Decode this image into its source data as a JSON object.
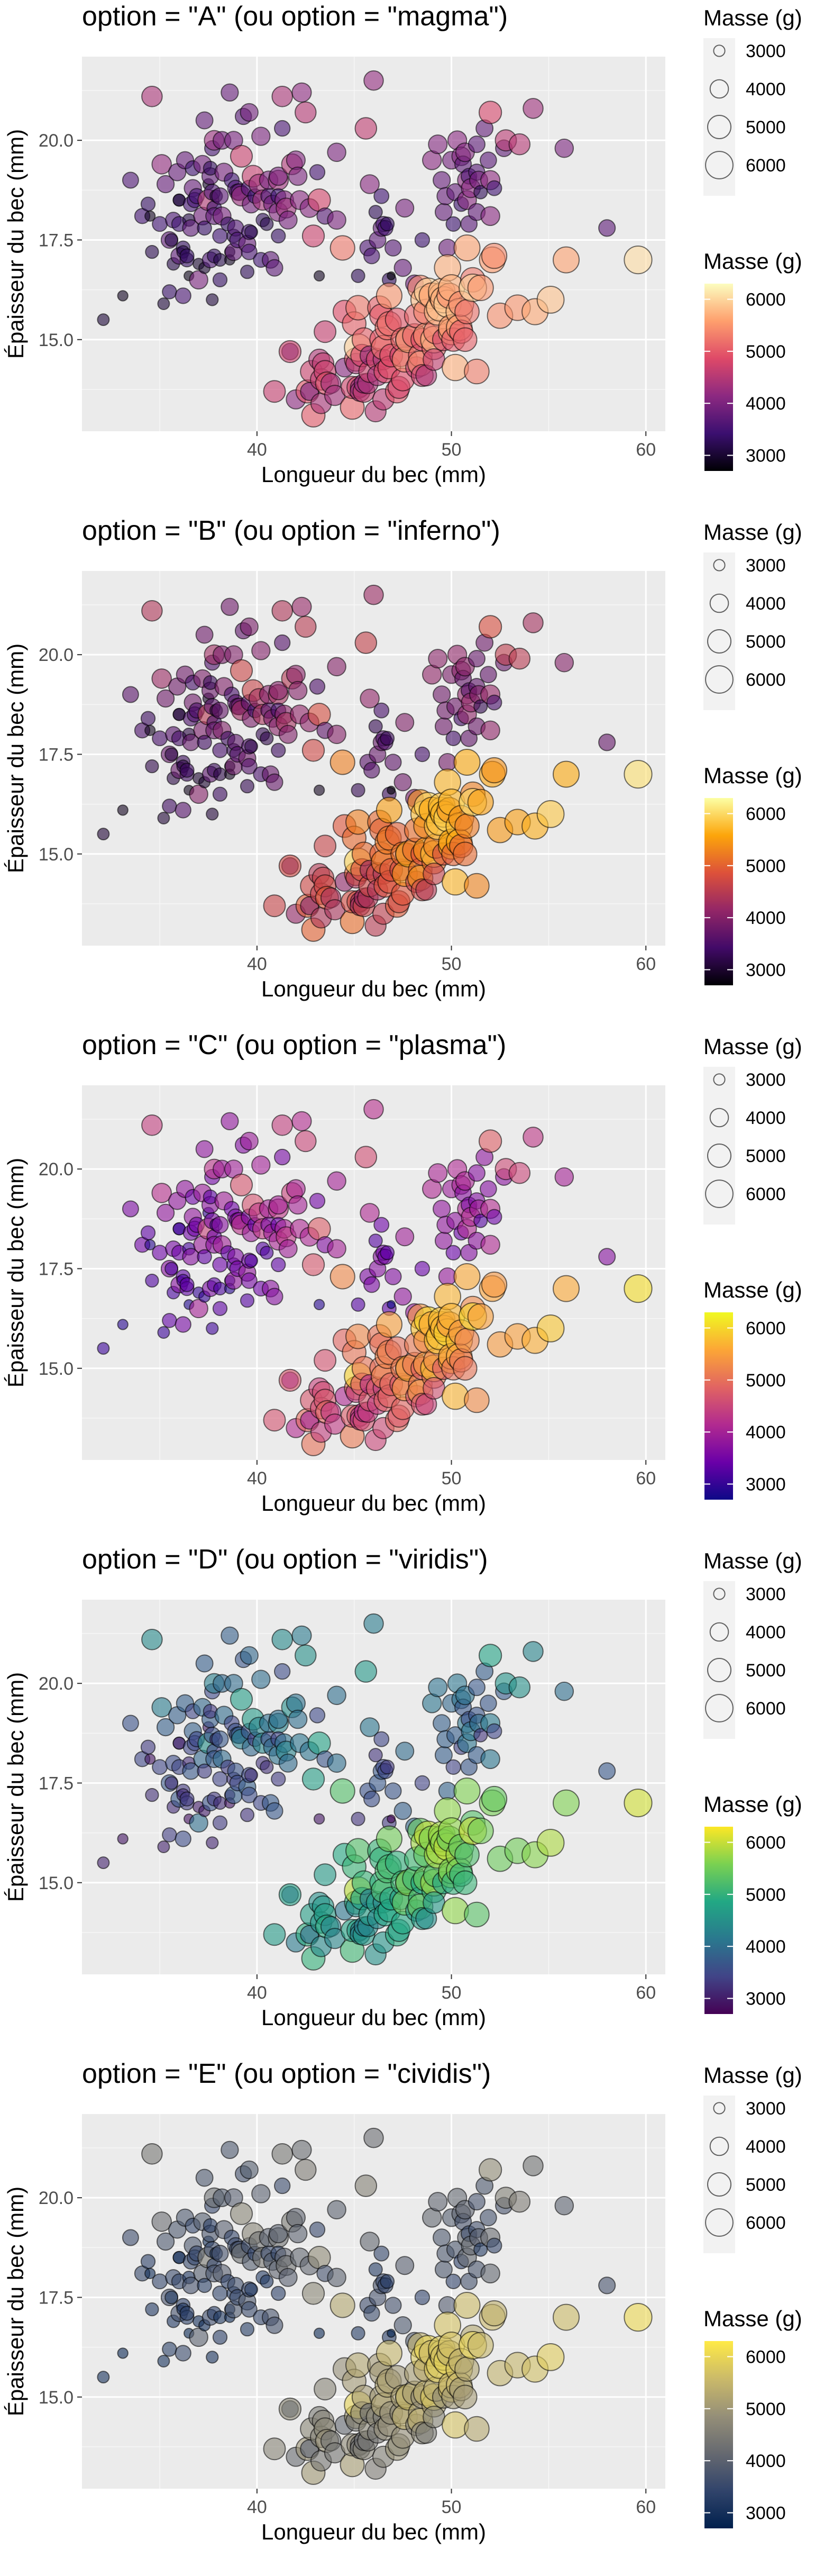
{
  "chart_data": {
    "type": "scatter",
    "xlabel": "Longueur du bec (mm)",
    "ylabel": "Épaisseur du bec (mm)",
    "xlim": [
      31,
      61
    ],
    "ylim": [
      12.7,
      22.1
    ],
    "x_ticks": [
      40,
      50,
      60
    ],
    "y_ticks": [
      15.0,
      17.5,
      20.0
    ],
    "x_tick_labels": [
      "40",
      "50",
      "60"
    ],
    "y_tick_labels": [
      "15.0",
      "17.5",
      "20.0"
    ],
    "grid": true,
    "legend_position": "right",
    "size_legend": {
      "title": "Masse (g)",
      "values": [
        3000,
        4000,
        5000,
        6000
      ],
      "labels": [
        "3000",
        "4000",
        "5000",
        "6000"
      ]
    },
    "color_legend": {
      "title": "Masse (g)",
      "range": [
        2700,
        6300
      ],
      "ticks": [
        3000,
        4000,
        5000,
        6000
      ],
      "labels": [
        "3000",
        "4000",
        "5000",
        "6000"
      ]
    },
    "panels": [
      {
        "title": "option = \"A\" (ou option = \"magma\")",
        "palette": "magma",
        "stops": [
          "#000004",
          "#3b0f70",
          "#8c2981",
          "#de4968",
          "#fe9f6d",
          "#fcfdbf"
        ]
      },
      {
        "title": "option = \"B\" (ou option = \"inferno\")",
        "palette": "inferno",
        "stops": [
          "#000004",
          "#420a68",
          "#932667",
          "#dd513a",
          "#fca50a",
          "#fcffa4"
        ]
      },
      {
        "title": "option = \"C\" (ou option = \"plasma\")",
        "palette": "plasma",
        "stops": [
          "#0d0887",
          "#6a00a8",
          "#b12a90",
          "#e16462",
          "#fca636",
          "#f0f921"
        ]
      },
      {
        "title": "option = \"D\" (ou option = \"viridis\")",
        "palette": "viridis",
        "stops": [
          "#440154",
          "#414487",
          "#2a788e",
          "#22a884",
          "#7ad151",
          "#fde725"
        ]
      },
      {
        "title": "option = \"E\" (ou option = \"cividis\")",
        "palette": "cividis",
        "stops": [
          "#00204d",
          "#31446b",
          "#666970",
          "#958f78",
          "#cbba69",
          "#ffea46"
        ]
      }
    ],
    "points": [
      [
        32.1,
        15.5,
        3050
      ],
      [
        33.1,
        16.1,
        2900
      ],
      [
        33.5,
        19.0,
        3600
      ],
      [
        34.1,
        18.1,
        3475
      ],
      [
        34.4,
        18.4,
        3325
      ],
      [
        34.5,
        18.1,
        2900
      ],
      [
        34.6,
        21.1,
        4400
      ],
      [
        34.6,
        17.2,
        3200
      ],
      [
        35.0,
        17.9,
        3450
      ],
      [
        35.1,
        19.4,
        4200
      ],
      [
        35.2,
        15.9,
        3050
      ],
      [
        35.3,
        18.9,
        3800
      ],
      [
        35.5,
        16.2,
        3350
      ],
      [
        35.5,
        17.5,
        3700
      ],
      [
        35.6,
        17.5,
        3175
      ],
      [
        35.7,
        16.9,
        3150
      ],
      [
        35.7,
        18.0,
        3550
      ],
      [
        35.9,
        19.2,
        3800
      ],
      [
        36.0,
        18.5,
        3100
      ],
      [
        36.0,
        17.9,
        3450
      ],
      [
        36.0,
        17.1,
        3700
      ],
      [
        36.0,
        18.5,
        3100
      ],
      [
        36.2,
        17.3,
        3300
      ],
      [
        36.2,
        16.1,
        3550
      ],
      [
        36.2,
        17.2,
        3150
      ],
      [
        36.3,
        19.5,
        3800
      ],
      [
        36.4,
        17.0,
        3325
      ],
      [
        36.4,
        17.1,
        3325
      ],
      [
        36.5,
        18.0,
        3150
      ],
      [
        36.5,
        16.6,
        2850
      ],
      [
        36.6,
        17.8,
        3700
      ],
      [
        36.6,
        18.4,
        3475
      ],
      [
        36.7,
        19.3,
        3450
      ],
      [
        36.7,
        18.8,
        3800
      ],
      [
        36.8,
        18.5,
        3500
      ],
      [
        36.9,
        18.6,
        3500
      ],
      [
        37.0,
        16.9,
        3000
      ],
      [
        37.0,
        16.5,
        4000
      ],
      [
        37.2,
        18.1,
        3900
      ],
      [
        37.2,
        19.4,
        3900
      ],
      [
        37.3,
        20.5,
        3775
      ],
      [
        37.3,
        17.8,
        3350
      ],
      [
        37.3,
        16.8,
        3000
      ],
      [
        37.5,
        18.9,
        2975
      ],
      [
        37.5,
        18.5,
        4475
      ],
      [
        37.6,
        17.0,
        3600
      ],
      [
        37.6,
        19.1,
        3750
      ],
      [
        37.6,
        19.3,
        3300
      ],
      [
        37.7,
        18.7,
        3600
      ],
      [
        37.7,
        19.8,
        3500
      ],
      [
        37.7,
        16.0,
        3075
      ],
      [
        37.8,
        18.3,
        3400
      ],
      [
        37.8,
        17.1,
        3300
      ],
      [
        37.8,
        20.0,
        4250
      ],
      [
        37.8,
        18.1,
        3750
      ],
      [
        37.9,
        18.6,
        3150
      ],
      [
        38.1,
        18.6,
        3700
      ],
      [
        38.1,
        17.0,
        3175
      ],
      [
        38.1,
        16.5,
        3325
      ],
      [
        38.1,
        17.6,
        3425
      ],
      [
        38.2,
        18.1,
        3950
      ],
      [
        38.2,
        20.0,
        3900
      ],
      [
        38.3,
        19.2,
        3950
      ],
      [
        38.5,
        17.9,
        3325
      ],
      [
        38.6,
        21.2,
        3800
      ],
      [
        38.6,
        17.2,
        2900
      ],
      [
        38.6,
        17.0,
        2900
      ],
      [
        38.7,
        19.0,
        3450
      ],
      [
        38.8,
        17.2,
        3800
      ],
      [
        38.8,
        17.6,
        3275
      ],
      [
        38.8,
        20.0,
        3950
      ],
      [
        38.9,
        17.8,
        3625
      ],
      [
        38.9,
        18.8,
        3600
      ],
      [
        39.0,
        17.5,
        3550
      ],
      [
        39.0,
        18.7,
        3650
      ],
      [
        39.1,
        18.7,
        3750
      ],
      [
        39.2,
        19.6,
        4675
      ],
      [
        39.2,
        18.6,
        4250
      ],
      [
        39.3,
        20.6,
        3650
      ],
      [
        39.5,
        17.4,
        3800
      ],
      [
        39.5,
        16.7,
        3250
      ],
      [
        39.6,
        17.7,
        3500
      ],
      [
        39.6,
        20.7,
        3900
      ],
      [
        39.6,
        18.8,
        3600
      ],
      [
        39.6,
        17.2,
        3550
      ],
      [
        39.7,
        18.4,
        3900
      ],
      [
        39.7,
        17.7,
        3200
      ],
      [
        39.8,
        19.1,
        4650
      ],
      [
        39.9,
        18.6,
        3400
      ],
      [
        40.1,
        18.9,
        4300
      ],
      [
        40.2,
        17.0,
        3450
      ],
      [
        40.2,
        20.1,
        3975
      ],
      [
        40.3,
        18.0,
        3250
      ],
      [
        40.3,
        18.5,
        4350
      ],
      [
        40.5,
        17.9,
        3200
      ],
      [
        40.6,
        18.6,
        3550
      ],
      [
        40.6,
        19.0,
        4000
      ],
      [
        40.7,
        17.0,
        3725
      ],
      [
        40.8,
        18.4,
        3900
      ],
      [
        40.9,
        16.8,
        3700
      ],
      [
        41.1,
        17.6,
        3325
      ],
      [
        41.1,
        19.0,
        4300
      ],
      [
        41.1,
        18.2,
        4050
      ],
      [
        41.1,
        19.1,
        4000
      ],
      [
        41.1,
        18.6,
        3450
      ],
      [
        41.3,
        20.3,
        3550
      ],
      [
        41.3,
        21.1,
        4400
      ],
      [
        41.4,
        18.5,
        4050
      ],
      [
        41.5,
        18.3,
        4300
      ],
      [
        41.6,
        18.0,
        3950
      ],
      [
        41.7,
        14.7,
        3700
      ],
      [
        41.8,
        19.4,
        4450
      ],
      [
        42.0,
        19.5,
        4050
      ],
      [
        42.1,
        19.1,
        4000
      ],
      [
        42.2,
        18.5,
        4100
      ],
      [
        42.3,
        21.2,
        4150
      ],
      [
        42.5,
        20.7,
        4500
      ],
      [
        42.7,
        18.3,
        4075
      ],
      [
        42.9,
        17.6,
        4700
      ],
      [
        43.1,
        19.2,
        3500
      ],
      [
        43.2,
        18.5,
        4775
      ],
      [
        43.2,
        16.6,
        2900
      ],
      [
        43.5,
        18.1,
        3650
      ],
      [
        44.1,
        19.7,
        4000
      ],
      [
        44.1,
        18.0,
        4000
      ],
      [
        45.2,
        16.6,
        3250
      ],
      [
        45.6,
        20.3,
        4600
      ],
      [
        45.7,
        17.3,
        3600
      ],
      [
        45.8,
        18.9,
        4100
      ],
      [
        45.9,
        17.1,
        3575
      ],
      [
        46.0,
        21.5,
        4200
      ],
      [
        46.1,
        18.2,
        3250
      ],
      [
        46.2,
        17.5,
        3700
      ],
      [
        46.4,
        17.8,
        3700
      ],
      [
        46.4,
        18.6,
        3450
      ],
      [
        46.5,
        17.9,
        3500
      ],
      [
        46.6,
        17.8,
        3500
      ],
      [
        46.7,
        17.9,
        3300
      ],
      [
        46.8,
        16.5,
        3300
      ],
      [
        46.9,
        16.6,
        2700
      ],
      [
        47.0,
        17.3,
        3650
      ],
      [
        47.5,
        16.8,
        3800
      ],
      [
        47.6,
        18.3,
        3950
      ],
      [
        48.1,
        16.4,
        3900
      ],
      [
        48.5,
        17.5,
        3400
      ],
      [
        49.0,
        19.5,
        4100
      ],
      [
        49.3,
        19.9,
        4050
      ],
      [
        49.5,
        19.0,
        3800
      ],
      [
        49.6,
        18.2,
        3775
      ],
      [
        49.7,
        18.6,
        3800
      ],
      [
        49.8,
        17.3,
        3850
      ],
      [
        50.0,
        19.5,
        3900
      ],
      [
        50.1,
        17.9,
        3400
      ],
      [
        50.2,
        18.7,
        3775
      ],
      [
        50.3,
        20.0,
        4100
      ],
      [
        50.5,
        18.4,
        3400
      ],
      [
        50.5,
        19.6,
        4050
      ],
      [
        50.6,
        19.4,
        3700
      ],
      [
        50.7,
        19.7,
        4050
      ],
      [
        50.8,
        19.0,
        4100
      ],
      [
        50.8,
        18.5,
        4100
      ],
      [
        50.9,
        17.9,
        3675
      ],
      [
        50.9,
        19.1,
        3550
      ],
      [
        51.0,
        18.8,
        4100
      ],
      [
        51.3,
        19.9,
        3700
      ],
      [
        51.3,
        18.2,
        3750
      ],
      [
        51.3,
        19.2,
        3650
      ],
      [
        51.4,
        19.0,
        3950
      ],
      [
        51.5,
        18.7,
        3250
      ],
      [
        51.7,
        20.3,
        3775
      ],
      [
        51.9,
        19.5,
        3675
      ],
      [
        52.0,
        18.1,
        4100
      ],
      [
        52.0,
        19.0,
        4150
      ],
      [
        52.0,
        20.7,
        4800
      ],
      [
        52.2,
        18.8,
        3450
      ],
      [
        52.7,
        19.8,
        3725
      ],
      [
        52.8,
        20.0,
        4550
      ],
      [
        53.5,
        19.9,
        4500
      ],
      [
        54.2,
        20.8,
        4300
      ],
      [
        55.8,
        19.8,
        4000
      ],
      [
        58.0,
        17.8,
        3700
      ],
      [
        40.9,
        13.7,
        4650
      ],
      [
        41.7,
        14.7,
        4700
      ],
      [
        42.0,
        13.5,
        4150
      ],
      [
        42.6,
        13.7,
        4950
      ],
      [
        42.7,
        13.7,
        3950
      ],
      [
        42.8,
        14.2,
        4700
      ],
      [
        42.9,
        13.1,
        5000
      ],
      [
        43.2,
        14.5,
        4450
      ],
      [
        43.3,
        13.4,
        4400
      ],
      [
        43.3,
        14.0,
        4575
      ],
      [
        43.4,
        14.4,
        4600
      ],
      [
        43.5,
        14.2,
        4700
      ],
      [
        43.5,
        15.2,
        4650
      ],
      [
        43.6,
        13.9,
        4900
      ],
      [
        43.8,
        13.9,
        4300
      ],
      [
        44.0,
        13.6,
        4350
      ],
      [
        44.4,
        17.3,
        5250
      ],
      [
        44.5,
        14.3,
        4100
      ],
      [
        44.5,
        15.7,
        4875
      ],
      [
        44.9,
        13.3,
        5100
      ],
      [
        44.9,
        13.8,
        4750
      ],
      [
        45.0,
        15.4,
        5050
      ],
      [
        45.1,
        14.5,
        5000
      ],
      [
        45.1,
        14.4,
        4400
      ],
      [
        45.2,
        13.8,
        4750
      ],
      [
        45.2,
        14.8,
        5950
      ],
      [
        45.2,
        15.8,
        5250
      ],
      [
        45.3,
        13.8,
        4200
      ],
      [
        45.3,
        13.7,
        4300
      ],
      [
        45.4,
        14.6,
        4800
      ],
      [
        45.5,
        13.7,
        4650
      ],
      [
        45.5,
        13.9,
        4200
      ],
      [
        45.5,
        15.0,
        5050
      ],
      [
        45.7,
        13.9,
        4400
      ],
      [
        45.8,
        14.2,
        4700
      ],
      [
        45.8,
        14.6,
        4200
      ],
      [
        46.1,
        13.2,
        4500
      ],
      [
        46.2,
        14.5,
        4800
      ],
      [
        46.2,
        14.1,
        4375
      ],
      [
        46.3,
        15.8,
        5050
      ],
      [
        46.4,
        15.6,
        5000
      ],
      [
        46.4,
        15.0,
        4975
      ],
      [
        46.5,
        13.5,
        4550
      ],
      [
        46.5,
        14.5,
        4400
      ],
      [
        46.5,
        14.8,
        5200
      ],
      [
        46.6,
        14.2,
        4850
      ],
      [
        46.7,
        15.3,
        5200
      ],
      [
        46.8,
        14.3,
        4850
      ],
      [
        46.8,
        16.1,
        5500
      ],
      [
        46.8,
        15.4,
        5150
      ],
      [
        46.9,
        14.6,
        4875
      ],
      [
        47.2,
        13.7,
        4925
      ],
      [
        47.2,
        15.5,
        4975
      ],
      [
        47.3,
        13.8,
        4725
      ],
      [
        47.4,
        14.6,
        4725
      ],
      [
        47.5,
        14.0,
        4875
      ],
      [
        47.5,
        15.0,
        5100
      ],
      [
        47.6,
        14.5,
        5400
      ],
      [
        47.7,
        15.0,
        4700
      ],
      [
        47.8,
        15.0,
        5650
      ],
      [
        48.1,
        15.1,
        5100
      ],
      [
        48.2,
        14.3,
        4600
      ],
      [
        48.2,
        15.6,
        5100
      ],
      [
        48.4,
        14.6,
        5050
      ],
      [
        48.4,
        16.3,
        5400
      ],
      [
        48.4,
        14.4,
        5400
      ],
      [
        48.5,
        14.1,
        4700
      ],
      [
        48.5,
        15.0,
        4850
      ],
      [
        48.6,
        16.0,
        5800
      ],
      [
        48.7,
        14.1,
        4450
      ],
      [
        48.7,
        15.1,
        5450
      ],
      [
        48.7,
        15.7,
        5350
      ],
      [
        48.8,
        16.2,
        6000
      ],
      [
        49.0,
        16.1,
        5550
      ],
      [
        49.1,
        14.8,
        5150
      ],
      [
        49.1,
        15.0,
        5800
      ],
      [
        49.1,
        14.5,
        4625
      ],
      [
        49.2,
        15.2,
        5250
      ],
      [
        49.3,
        15.7,
        5850
      ],
      [
        49.4,
        15.8,
        5800
      ],
      [
        49.5,
        16.1,
        5600
      ],
      [
        49.5,
        16.2,
        5800
      ],
      [
        49.6,
        16.0,
        5700
      ],
      [
        49.6,
        15.0,
        4750
      ],
      [
        49.8,
        15.9,
        5950
      ],
      [
        49.8,
        16.8,
        5700
      ],
      [
        49.9,
        16.1,
        5400
      ],
      [
        50.0,
        15.2,
        5700
      ],
      [
        50.0,
        15.3,
        5550
      ],
      [
        50.0,
        16.3,
        5700
      ],
      [
        50.1,
        15.0,
        5000
      ],
      [
        50.2,
        14.3,
        5700
      ],
      [
        50.4,
        15.7,
        5750
      ],
      [
        50.4,
        15.3,
        5550
      ],
      [
        50.5,
        15.2,
        5000
      ],
      [
        50.5,
        15.9,
        5400
      ],
      [
        50.7,
        15.0,
        5050
      ],
      [
        50.8,
        17.3,
        5600
      ],
      [
        50.8,
        15.7,
        5200
      ],
      [
        51.1,
        16.5,
        5250
      ],
      [
        51.1,
        16.3,
        6000
      ],
      [
        51.3,
        14.2,
        5300
      ],
      [
        51.5,
        16.3,
        5500
      ],
      [
        52.1,
        17.0,
        5550
      ],
      [
        52.2,
        17.1,
        5400
      ],
      [
        52.5,
        15.6,
        5450
      ],
      [
        53.4,
        15.8,
        5500
      ],
      [
        54.3,
        15.7,
        5650
      ],
      [
        55.1,
        16.0,
        5850
      ],
      [
        55.9,
        17.0,
        5600
      ],
      [
        59.6,
        17.0,
        6050
      ]
    ]
  }
}
